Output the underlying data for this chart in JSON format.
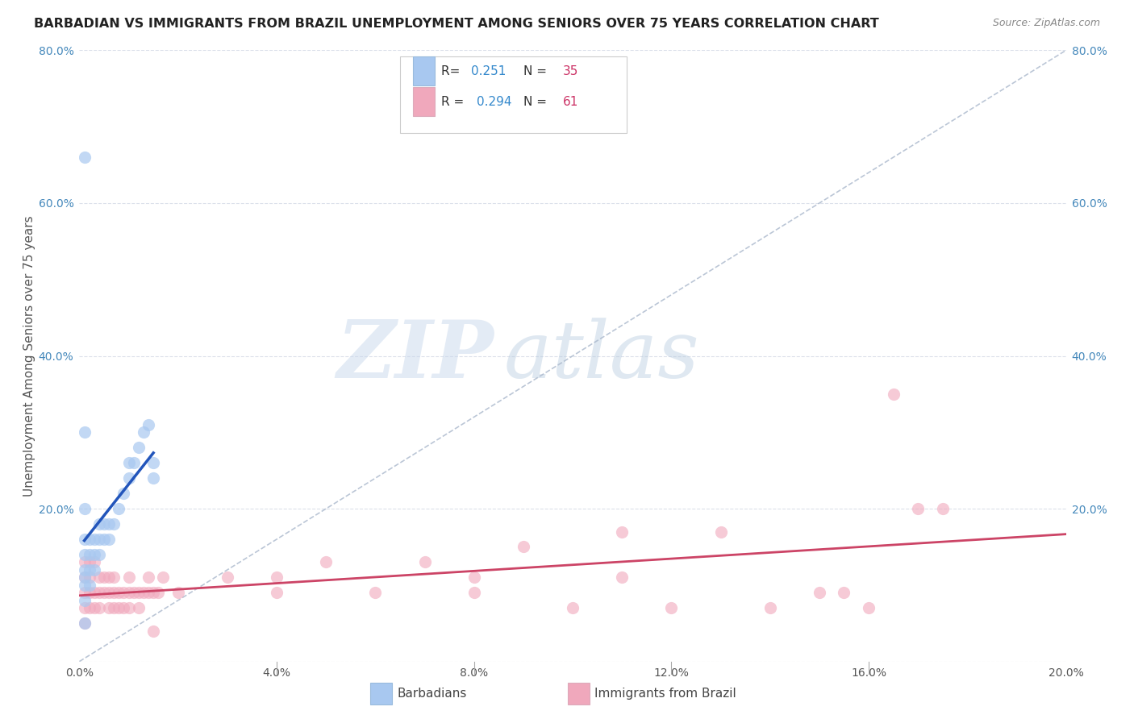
{
  "title": "BARBADIAN VS IMMIGRANTS FROM BRAZIL UNEMPLOYMENT AMONG SENIORS OVER 75 YEARS CORRELATION CHART",
  "source": "Source: ZipAtlas.com",
  "ylabel": "Unemployment Among Seniors over 75 years",
  "xlim": [
    0.0,
    0.2
  ],
  "ylim": [
    0.0,
    0.8
  ],
  "x_ticks": [
    0.0,
    0.04,
    0.08,
    0.12,
    0.16,
    0.2
  ],
  "y_ticks": [
    0.0,
    0.2,
    0.4,
    0.6,
    0.8
  ],
  "x_tick_labels": [
    "0.0%",
    "4.0%",
    "8.0%",
    "12.0%",
    "16.0%",
    "20.0%"
  ],
  "y_tick_labels": [
    "",
    "20.0%",
    "40.0%",
    "60.0%",
    "80.0%"
  ],
  "barbadian_color": "#a8c8f0",
  "brazil_color": "#f0a8bc",
  "trend_barbadian_color": "#2255bb",
  "trend_brazil_color": "#cc4466",
  "trend_dashed_color": "#aab8cc",
  "barbadian_x": [
    0.001,
    0.001,
    0.001,
    0.001,
    0.001,
    0.001,
    0.001,
    0.002,
    0.002,
    0.002,
    0.002,
    0.003,
    0.003,
    0.003,
    0.004,
    0.004,
    0.004,
    0.005,
    0.005,
    0.006,
    0.006,
    0.007,
    0.008,
    0.009,
    0.01,
    0.01,
    0.011,
    0.012,
    0.013,
    0.014,
    0.015,
    0.015,
    0.001,
    0.001,
    0.001
  ],
  "barbadian_y": [
    0.05,
    0.08,
    0.1,
    0.11,
    0.12,
    0.14,
    0.16,
    0.1,
    0.12,
    0.14,
    0.16,
    0.12,
    0.14,
    0.16,
    0.14,
    0.16,
    0.18,
    0.16,
    0.18,
    0.16,
    0.18,
    0.18,
    0.2,
    0.22,
    0.24,
    0.26,
    0.26,
    0.28,
    0.3,
    0.31,
    0.24,
    0.26,
    0.66,
    0.3,
    0.2
  ],
  "brazil_x": [
    0.001,
    0.001,
    0.001,
    0.001,
    0.001,
    0.002,
    0.002,
    0.002,
    0.002,
    0.003,
    0.003,
    0.003,
    0.004,
    0.004,
    0.004,
    0.005,
    0.005,
    0.006,
    0.006,
    0.006,
    0.007,
    0.007,
    0.007,
    0.008,
    0.008,
    0.009,
    0.009,
    0.01,
    0.01,
    0.01,
    0.011,
    0.012,
    0.012,
    0.013,
    0.014,
    0.014,
    0.015,
    0.015,
    0.016,
    0.017,
    0.02,
    0.03,
    0.04,
    0.04,
    0.05,
    0.06,
    0.07,
    0.08,
    0.08,
    0.09,
    0.1,
    0.11,
    0.11,
    0.12,
    0.13,
    0.14,
    0.15,
    0.155,
    0.16,
    0.165,
    0.17,
    0.175
  ],
  "brazil_y": [
    0.05,
    0.07,
    0.09,
    0.11,
    0.13,
    0.07,
    0.09,
    0.11,
    0.13,
    0.07,
    0.09,
    0.13,
    0.07,
    0.09,
    0.11,
    0.09,
    0.11,
    0.07,
    0.09,
    0.11,
    0.07,
    0.09,
    0.11,
    0.07,
    0.09,
    0.07,
    0.09,
    0.07,
    0.09,
    0.11,
    0.09,
    0.07,
    0.09,
    0.09,
    0.09,
    0.11,
    0.04,
    0.09,
    0.09,
    0.11,
    0.09,
    0.11,
    0.09,
    0.11,
    0.13,
    0.09,
    0.13,
    0.09,
    0.11,
    0.15,
    0.07,
    0.11,
    0.17,
    0.07,
    0.17,
    0.07,
    0.09,
    0.09,
    0.07,
    0.35,
    0.2,
    0.2
  ],
  "watermark_zip": "ZIP",
  "watermark_atlas": "atlas",
  "background_color": "#ffffff",
  "grid_color": "#d8dde8",
  "tick_color": "#4488bb",
  "title_color": "#222222",
  "label_color": "#555555",
  "source_color": "#888888"
}
